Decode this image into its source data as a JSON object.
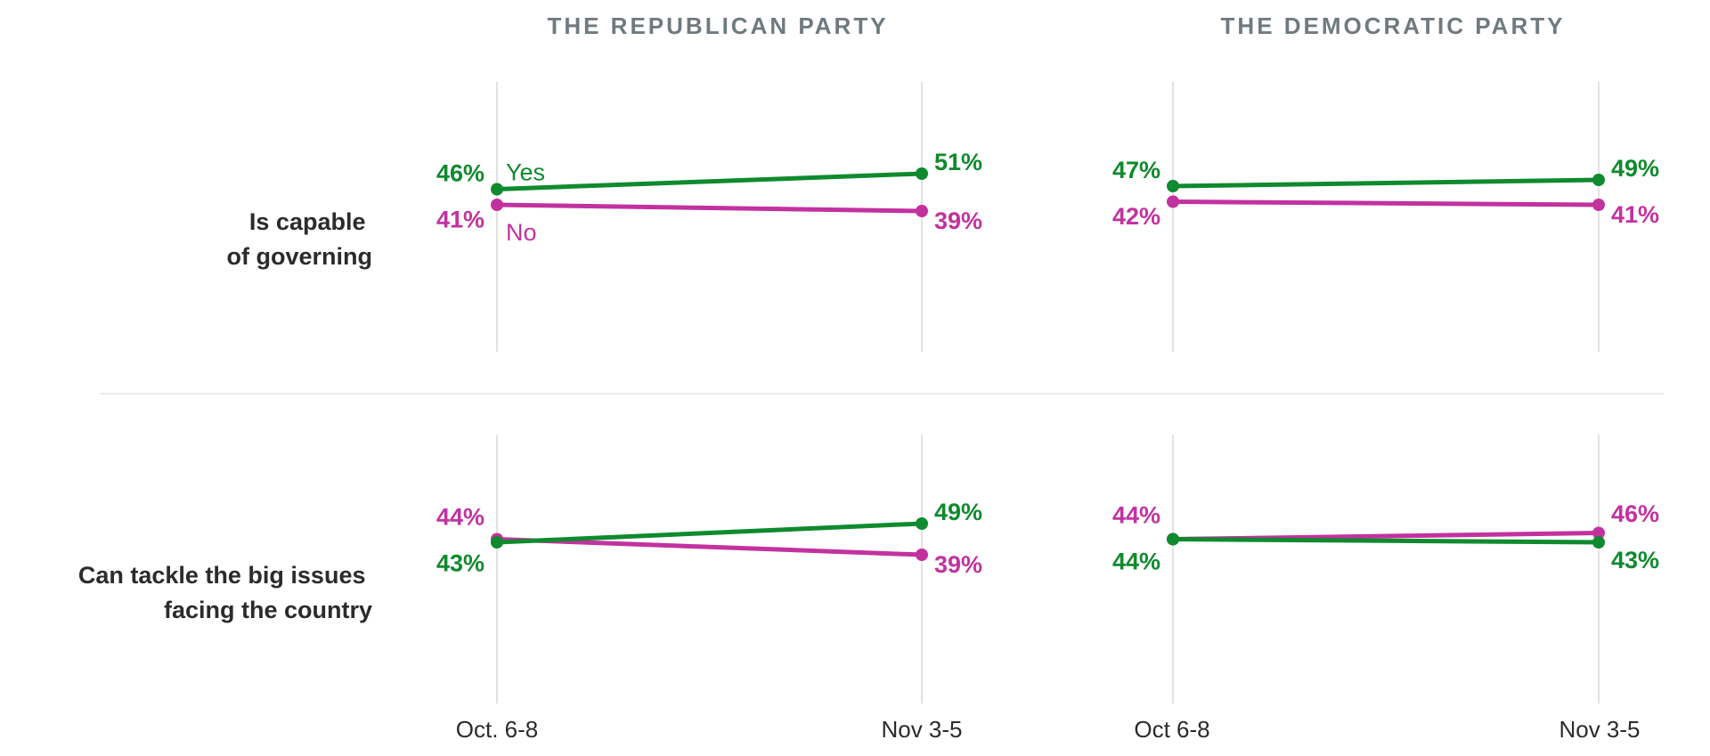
{
  "colors": {
    "yes": "#0f8a2e",
    "no": "#c2329f",
    "grid": "#d9d9d9",
    "title": "#6f7a7f",
    "text": "#2b2b2b"
  },
  "chart_data": {
    "type": "line",
    "columns": [
      "THE REPUBLICAN PARTY",
      "THE DEMOCRATIC PARTY"
    ],
    "rows": [
      "Is capable of governing",
      "Can tackle the big issues facing the country"
    ],
    "row_lines": [
      [
        "Is capable",
        "of governing"
      ],
      [
        "Can tackle the big issues",
        "facing the country"
      ]
    ],
    "x_labels": [
      [
        "Oct. 6-8",
        "Nov 3-5"
      ],
      [
        "Oct 6-8",
        "Nov 3-5"
      ]
    ],
    "legend": {
      "yes": "Yes",
      "no": "No"
    },
    "ylim": [
      30,
      60
    ],
    "panels": [
      {
        "row": 0,
        "col": 0,
        "legend": true,
        "series": [
          {
            "name": "Yes",
            "values": [
              46,
              51
            ]
          },
          {
            "name": "No",
            "values": [
              41,
              39
            ]
          }
        ]
      },
      {
        "row": 0,
        "col": 1,
        "series": [
          {
            "name": "Yes",
            "values": [
              47,
              49
            ]
          },
          {
            "name": "No",
            "values": [
              42,
              41
            ]
          }
        ]
      },
      {
        "row": 1,
        "col": 0,
        "series": [
          {
            "name": "Yes",
            "values": [
              43,
              49
            ]
          },
          {
            "name": "No",
            "values": [
              44,
              39
            ]
          }
        ]
      },
      {
        "row": 1,
        "col": 1,
        "series": [
          {
            "name": "Yes",
            "values": [
              44,
              43
            ]
          },
          {
            "name": "No",
            "values": [
              44,
              46
            ]
          }
        ]
      }
    ]
  }
}
